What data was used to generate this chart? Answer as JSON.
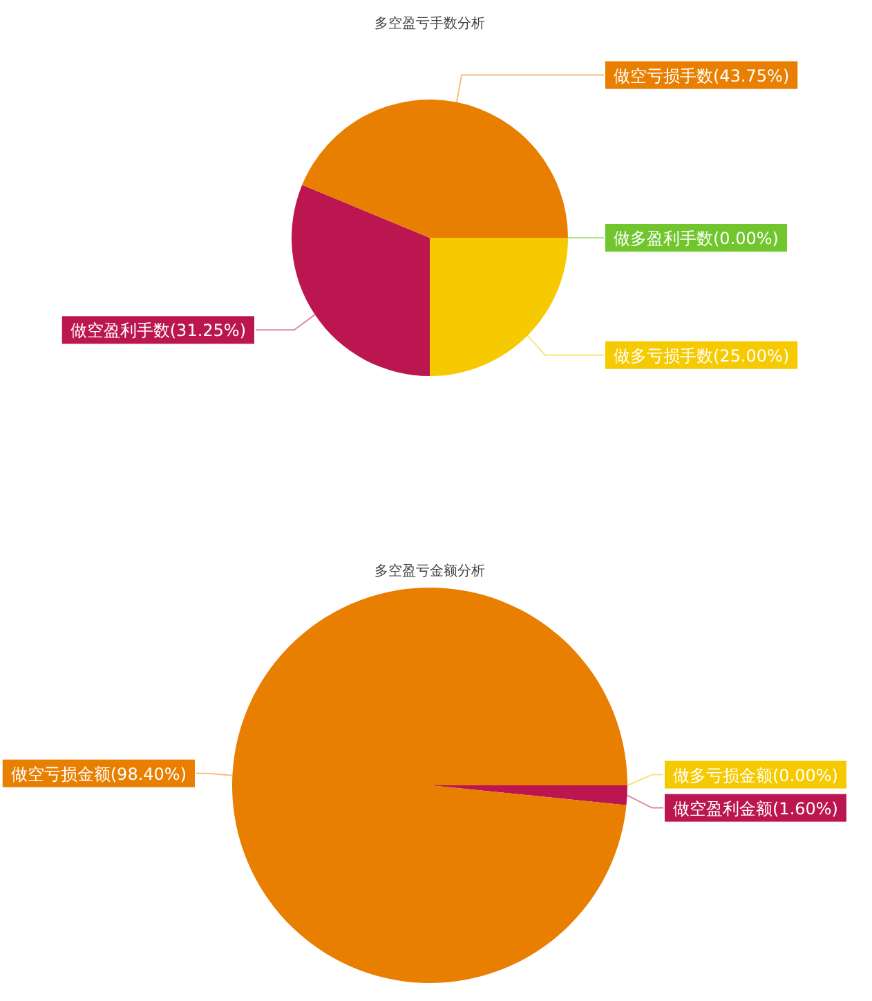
{
  "chart_data": [
    {
      "type": "pie",
      "title": "多空盈亏手数分析",
      "categories": [
        "做多盈利手数",
        "做多亏损手数",
        "做空盈利手数",
        "做空亏损手数"
      ],
      "values": [
        0,
        25,
        31.25,
        43.75
      ],
      "value_labels": [
        "(0.00%)",
        "(25.00%)",
        "(31.25%)",
        "(43.75%)"
      ],
      "colors": [
        "#70c62c",
        "#f6ca00",
        "#bc1650",
        "#e87f00"
      ]
    },
    {
      "type": "pie",
      "title": "多空盈亏金额分析",
      "categories": [
        "做多亏损金额",
        "做空盈利金额",
        "做空亏损金额"
      ],
      "values": [
        0,
        1.6,
        98.4
      ],
      "value_labels": [
        "(0.00%)",
        "(1.60%)",
        "(98.40%)"
      ],
      "colors": [
        "#f6ca00",
        "#bc1650",
        "#e87f00"
      ]
    }
  ]
}
